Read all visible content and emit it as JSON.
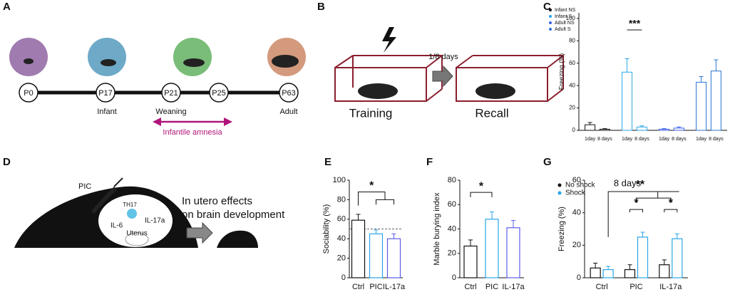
{
  "panel_labels": [
    "A",
    "B",
    "C",
    "D",
    "E",
    "F",
    "G"
  ],
  "panel_a": {
    "timepoints": [
      "P0",
      "P17",
      "P21",
      "P25",
      "P63"
    ],
    "stages": [
      "Infant",
      "Weaning",
      "Adult"
    ],
    "annotation": "Infantile amnesia"
  },
  "panel_b": {
    "interval": "1/8 days",
    "phases": [
      "Training",
      "Recall"
    ]
  },
  "panel_d": {
    "injection": "PIC",
    "cell": "TH17",
    "cytokines": [
      "IL-6",
      "IL-17a"
    ],
    "organ": "Uterus",
    "outcome": [
      "In utero effects",
      "on brain development"
    ]
  },
  "chart_data": [
    {
      "type": "bar",
      "ylabel": "Freezing (%)",
      "categories": [
        "1day",
        "8 days"
      ],
      "series": [
        {
          "name": "Infant NS",
          "color": "#111111",
          "values": [
            5,
            1
          ],
          "errors": [
            2,
            0.5
          ]
        },
        {
          "name": "Infant S",
          "color": "#2aa6e8",
          "values": [
            52,
            3
          ],
          "errors": [
            12,
            1
          ]
        },
        {
          "name": "Adult NS",
          "color": "#3b5ee6",
          "values": [
            1,
            2
          ],
          "errors": [
            0.5,
            1
          ]
        },
        {
          "name": "Adult S",
          "color": "#2b74d4",
          "values": [
            43,
            53
          ],
          "errors": [
            5,
            10
          ]
        }
      ],
      "ylim": [
        0,
        105
      ],
      "yticks": [
        0,
        20,
        40,
        60,
        80,
        100
      ],
      "annotations": [
        "***"
      ]
    },
    {
      "type": "bar",
      "ylabel": "Sociability (%)",
      "categories": [
        "Ctrl",
        "PIC",
        "IL-17a"
      ],
      "values": [
        59,
        45,
        40
      ],
      "errors": [
        6,
        4,
        5
      ],
      "colors": [
        "#111111",
        "#2aa6e8",
        "#5b5ee8"
      ],
      "ylim": [
        0,
        100
      ],
      "yticks": [
        0,
        20,
        40,
        60,
        80,
        100
      ],
      "reference_line": 50,
      "annotations": [
        "*"
      ]
    },
    {
      "type": "bar",
      "ylabel": "Marble burying index",
      "categories": [
        "Ctrl",
        "PIC",
        "IL-17a"
      ],
      "values": [
        26,
        48,
        41
      ],
      "errors": [
        5,
        6,
        6
      ],
      "colors": [
        "#111111",
        "#2aa6e8",
        "#5b5ee8"
      ],
      "ylim": [
        0,
        80
      ],
      "yticks": [
        0,
        20,
        40,
        60,
        80
      ],
      "annotations": [
        "*"
      ]
    },
    {
      "type": "bar",
      "title": "8 days",
      "ylabel": "Freezing (%)",
      "categories": [
        "Ctrl",
        "PIC",
        "IL-17a"
      ],
      "series": [
        {
          "name": "No shock",
          "color": "#111111",
          "values": [
            6,
            5,
            8
          ],
          "errors": [
            3,
            3,
            3
          ]
        },
        {
          "name": "Shock",
          "color": "#2aa6e8",
          "values": [
            5,
            25,
            24
          ],
          "errors": [
            2,
            3,
            3
          ]
        }
      ],
      "ylim": [
        0,
        60
      ],
      "yticks": [
        0,
        20,
        40,
        60
      ],
      "annotations": [
        "*",
        "*",
        "**"
      ]
    }
  ]
}
